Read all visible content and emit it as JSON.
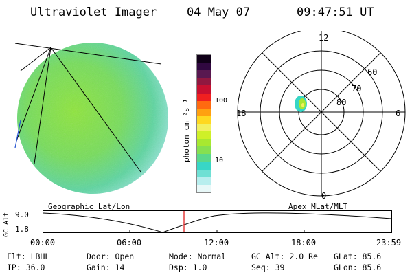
{
  "header": {
    "instrument": "Ultraviolet Imager",
    "date": "04 May 07",
    "time": "09:47:51 UT"
  },
  "colorbar": {
    "unit_label": "photon cm⁻²s⁻¹",
    "ticks": [
      "100",
      "10"
    ],
    "colors": [
      "#e8f8f8",
      "#b8eeee",
      "#6fe0d4",
      "#38d6c6",
      "#5ad88a",
      "#86e050",
      "#a8e830",
      "#cff028",
      "#f2f060",
      "#ffd820",
      "#ffa010",
      "#ff6a10",
      "#f02020",
      "#c81030",
      "#901840",
      "#581850",
      "#300840",
      "#100018"
    ]
  },
  "polar": {
    "mlt_labels": {
      "top": "12",
      "bottom": "0",
      "left": "18",
      "right": "6"
    },
    "lat_labels": [
      "60",
      "70",
      "80"
    ]
  },
  "timeline": {
    "left_title": "Geographic Lat/Lon",
    "right_title": "Apex MLat/MLT",
    "axis_label": "GC Alt",
    "y_max": "9.0",
    "y_min": "1.8",
    "x_ticks": [
      "00:00",
      "06:00",
      "12:00",
      "18:00",
      "23:59"
    ]
  },
  "info": {
    "row1": [
      "Flt: LBHL",
      "Door: Open",
      "Mode: Normal",
      "GC Alt: 2.0 Re",
      "GLat:  85.6"
    ],
    "row2": [
      "IP: 36.0",
      "Gain: 14",
      "Dsp:    1.0",
      "Seq: 39",
      "GLon:  85.6"
    ]
  }
}
